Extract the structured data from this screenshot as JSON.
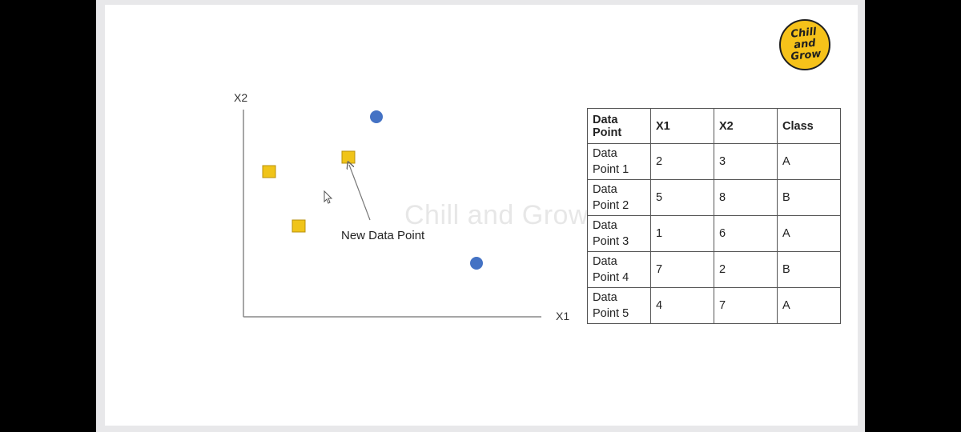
{
  "logo": {
    "text": "Chill\nand\nGrow"
  },
  "watermark": "Chill and Grow",
  "diagram": {
    "x_axis_label": "X1",
    "y_axis_label": "X2",
    "annotation": "New Data Point",
    "colors": {
      "square": "#f0c419",
      "circle": "#4472c4"
    },
    "points": [
      {
        "shape": "circle",
        "role": "class-b"
      },
      {
        "shape": "square",
        "role": "new-point"
      },
      {
        "shape": "square",
        "role": "class-a"
      },
      {
        "shape": "square",
        "role": "class-a"
      },
      {
        "shape": "circle",
        "role": "class-b"
      }
    ]
  },
  "table": {
    "headers": [
      "Data\nPoint",
      "X1",
      "X2",
      "Class"
    ],
    "rows": [
      [
        "Data\nPoint 1",
        "2",
        "3",
        "A"
      ],
      [
        "Data\nPoint 2",
        "5",
        "8",
        "B"
      ],
      [
        "Data\nPoint 3",
        "1",
        "6",
        "A"
      ],
      [
        "Data\nPoint 4",
        "7",
        "2",
        "B"
      ],
      [
        "Data\nPoint 5",
        "4",
        "7",
        "A"
      ]
    ]
  }
}
